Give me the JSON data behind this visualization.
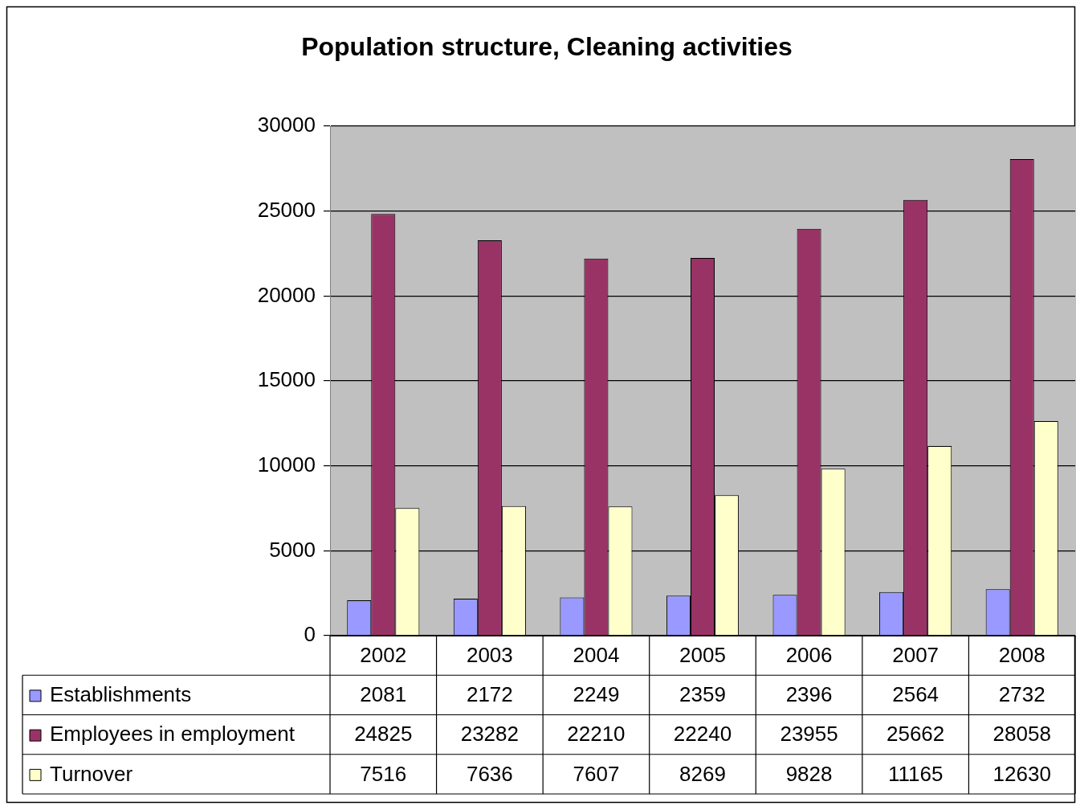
{
  "chart_data": {
    "type": "bar",
    "title": "Population structure, Cleaning activities",
    "categories": [
      "2002",
      "2003",
      "2004",
      "2005",
      "2006",
      "2007",
      "2008"
    ],
    "series": [
      {
        "name": "Establishments",
        "color": "#9999ff",
        "values": [
          2081,
          2172,
          2249,
          2359,
          2396,
          2564,
          2732
        ]
      },
      {
        "name": "Employees in employment",
        "color": "#993366",
        "values": [
          24825,
          23282,
          22210,
          22240,
          23955,
          25662,
          28058
        ]
      },
      {
        "name": "Turnover",
        "color": "#ffffcc",
        "values": [
          7516,
          7636,
          7607,
          8269,
          9828,
          11165,
          12630
        ]
      }
    ],
    "ylim": [
      0,
      30000
    ],
    "yticks": [
      0,
      5000,
      10000,
      15000,
      20000,
      25000,
      30000
    ],
    "grid": "y",
    "legend": "bottom",
    "data_labels": true
  }
}
